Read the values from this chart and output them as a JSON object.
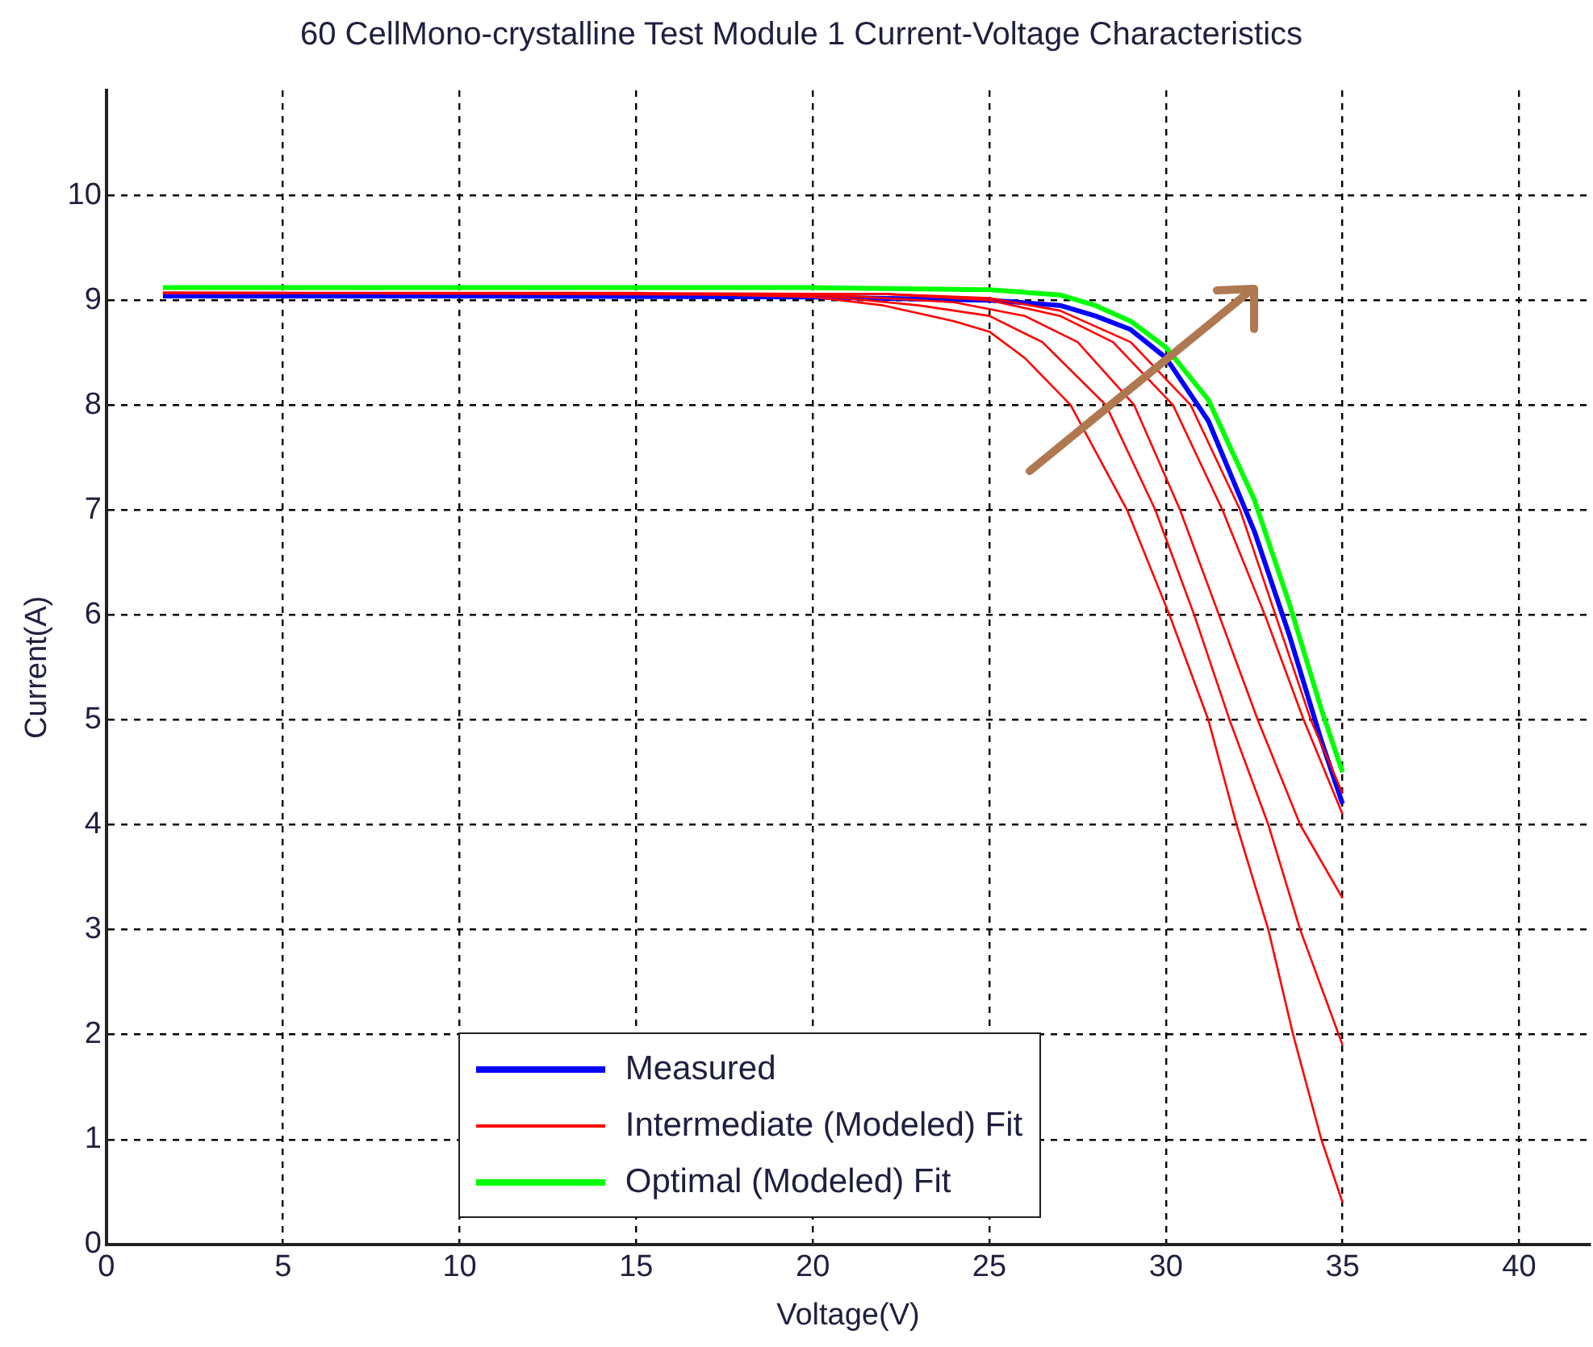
{
  "chart_data": {
    "type": "line",
    "title": "60 CellMono-crystalline Test Module 1 Current-Voltage Characteristics",
    "xlabel": "Voltage(V)",
    "ylabel": "Current(A)",
    "xlim": [
      0,
      42
    ],
    "ylim": [
      0,
      11
    ],
    "xticks": [
      0,
      5,
      10,
      15,
      20,
      25,
      30,
      35,
      40
    ],
    "yticks": [
      0,
      1,
      2,
      3,
      4,
      5,
      6,
      7,
      8,
      9,
      10
    ],
    "grid": true,
    "legend": "bottom",
    "marker": "none",
    "line_style": "solid",
    "series": [
      {
        "name": "Measured",
        "color": "#0000ff",
        "x": [
          1.6,
          10,
          20,
          25,
          27,
          28,
          29,
          30,
          31.2,
          32.5,
          33.5,
          34.4,
          35
        ],
        "values": [
          9.04,
          9.04,
          9.03,
          9.0,
          8.95,
          8.85,
          8.72,
          8.45,
          7.85,
          6.8,
          5.8,
          4.8,
          4.2
        ]
      },
      {
        "name": "Intermediate (Modeled) Fit",
        "color": "#ff0000",
        "x": [
          1.6,
          15,
          20,
          22,
          24,
          25,
          26,
          27.3,
          28.9,
          30.1,
          31.2,
          32.0,
          32.9,
          33.6,
          34.4,
          35
        ],
        "values": [
          9.07,
          9.07,
          9.03,
          8.95,
          8.8,
          8.7,
          8.45,
          8.0,
          7.0,
          6.0,
          5.0,
          4.0,
          3.0,
          2.0,
          1.0,
          0.4
        ]
      },
      {
        "color": "#ff0000",
        "x": [
          1.6,
          20,
          23,
          25,
          26.5,
          28.3,
          29.7,
          30.8,
          31.8,
          32.9,
          33.8,
          35
        ],
        "values": [
          9.07,
          9.05,
          8.95,
          8.85,
          8.6,
          8.0,
          7.0,
          6.0,
          5.0,
          4.0,
          3.0,
          1.9
        ]
      },
      {
        "color": "#ff0000",
        "x": [
          1.6,
          20,
          24,
          26,
          27.5,
          29.1,
          30.4,
          31.5,
          32.6,
          33.8,
          35
        ],
        "values": [
          9.07,
          9.06,
          8.98,
          8.85,
          8.6,
          8.0,
          7.0,
          6.0,
          5.0,
          4.0,
          3.3
        ]
      },
      {
        "color": "#ff0000",
        "x": [
          1.6,
          22,
          25,
          27,
          28.5,
          30.2,
          31.6,
          32.8,
          33.9,
          35
        ],
        "values": [
          9.07,
          9.06,
          9.0,
          8.85,
          8.6,
          8.0,
          7.0,
          6.0,
          5.0,
          4.1
        ]
      },
      {
        "color": "#ff0000",
        "x": [
          1.6,
          22,
          25,
          27,
          29,
          30.7,
          32.1,
          33.1,
          34.1,
          35
        ],
        "values": [
          9.07,
          9.06,
          9.02,
          8.9,
          8.6,
          8.0,
          7.0,
          6.0,
          5.0,
          4.3
        ]
      },
      {
        "name": "Optimal (Modeled) Fit",
        "color": "#00ff00",
        "x": [
          1.6,
          10,
          20,
          25,
          27,
          28,
          29,
          30,
          31.2,
          32.5,
          33.5,
          34.4,
          35
        ],
        "values": [
          9.12,
          9.12,
          9.12,
          9.1,
          9.05,
          8.95,
          8.8,
          8.55,
          8.05,
          7.1,
          6.1,
          5.1,
          4.5
        ]
      }
    ]
  }
}
